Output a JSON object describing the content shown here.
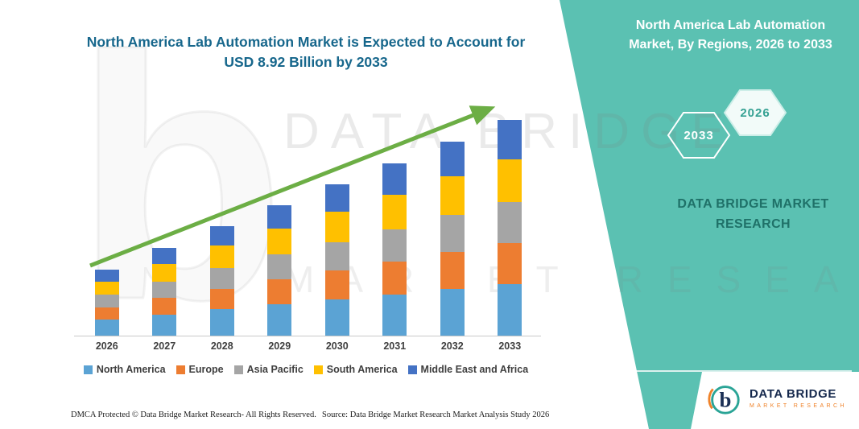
{
  "title": "North America Lab Automation Market is Expected to Account for USD 8.92 Billion by 2033",
  "panel": {
    "heading": "North America Lab Automation Market, By Regions, 2026 to 2033",
    "hex_back_label": "2033",
    "hex_front_label": "2026",
    "brand_line1": "DATA BRIDGE MARKET",
    "brand_line2": "RESEARCH",
    "accent_color": "#5BC1B2"
  },
  "watermark": {
    "glyph": "b",
    "line1": "DATA BRIDGE",
    "line2": "MARKET RESEARCH"
  },
  "logo": {
    "glyph": "b",
    "title": "DATA BRIDGE",
    "subtitle": "MARKET RESEARCH"
  },
  "footer": {
    "dmca": "DMCA Protected © Data Bridge Market Research-  All Rights Reserved.",
    "source": "Source: Data Bridge Market Research  Market Analysis Study 2026"
  },
  "chart_data": {
    "type": "bar",
    "stacked": true,
    "title": "North America Lab Automation Market is Expected to Account for USD 8.92 Billion by 2033",
    "xlabel": "",
    "ylabel": "",
    "unit": "USD Billion",
    "ylim": [
      0,
      9.5
    ],
    "grid": false,
    "legend_position": "bottom",
    "trend_arrow_color": "#6CAE45",
    "categories": [
      "2026",
      "2027",
      "2028",
      "2029",
      "2030",
      "2031",
      "2032",
      "2033"
    ],
    "totals": [
      2.74,
      3.63,
      4.54,
      5.41,
      6.26,
      7.12,
      8.05,
      8.92
    ],
    "series": [
      {
        "name": "North America",
        "color": "#5BA3D4",
        "values": [
          0.66,
          0.87,
          1.09,
          1.3,
          1.5,
          1.71,
          1.93,
          2.14
        ]
      },
      {
        "name": "Europe",
        "color": "#ED7D31",
        "values": [
          0.52,
          0.69,
          0.86,
          1.03,
          1.19,
          1.35,
          1.53,
          1.69
        ]
      },
      {
        "name": "Asia Pacific",
        "color": "#A5A5A5",
        "values": [
          0.52,
          0.69,
          0.86,
          1.03,
          1.19,
          1.35,
          1.53,
          1.69
        ]
      },
      {
        "name": "South America",
        "color": "#FFC000",
        "values": [
          0.55,
          0.73,
          0.91,
          1.08,
          1.25,
          1.43,
          1.61,
          1.78
        ]
      },
      {
        "name": "Middle East and Africa",
        "color": "#4472C4",
        "values": [
          0.49,
          0.65,
          0.82,
          0.97,
          1.13,
          1.28,
          1.45,
          1.62
        ]
      }
    ]
  }
}
